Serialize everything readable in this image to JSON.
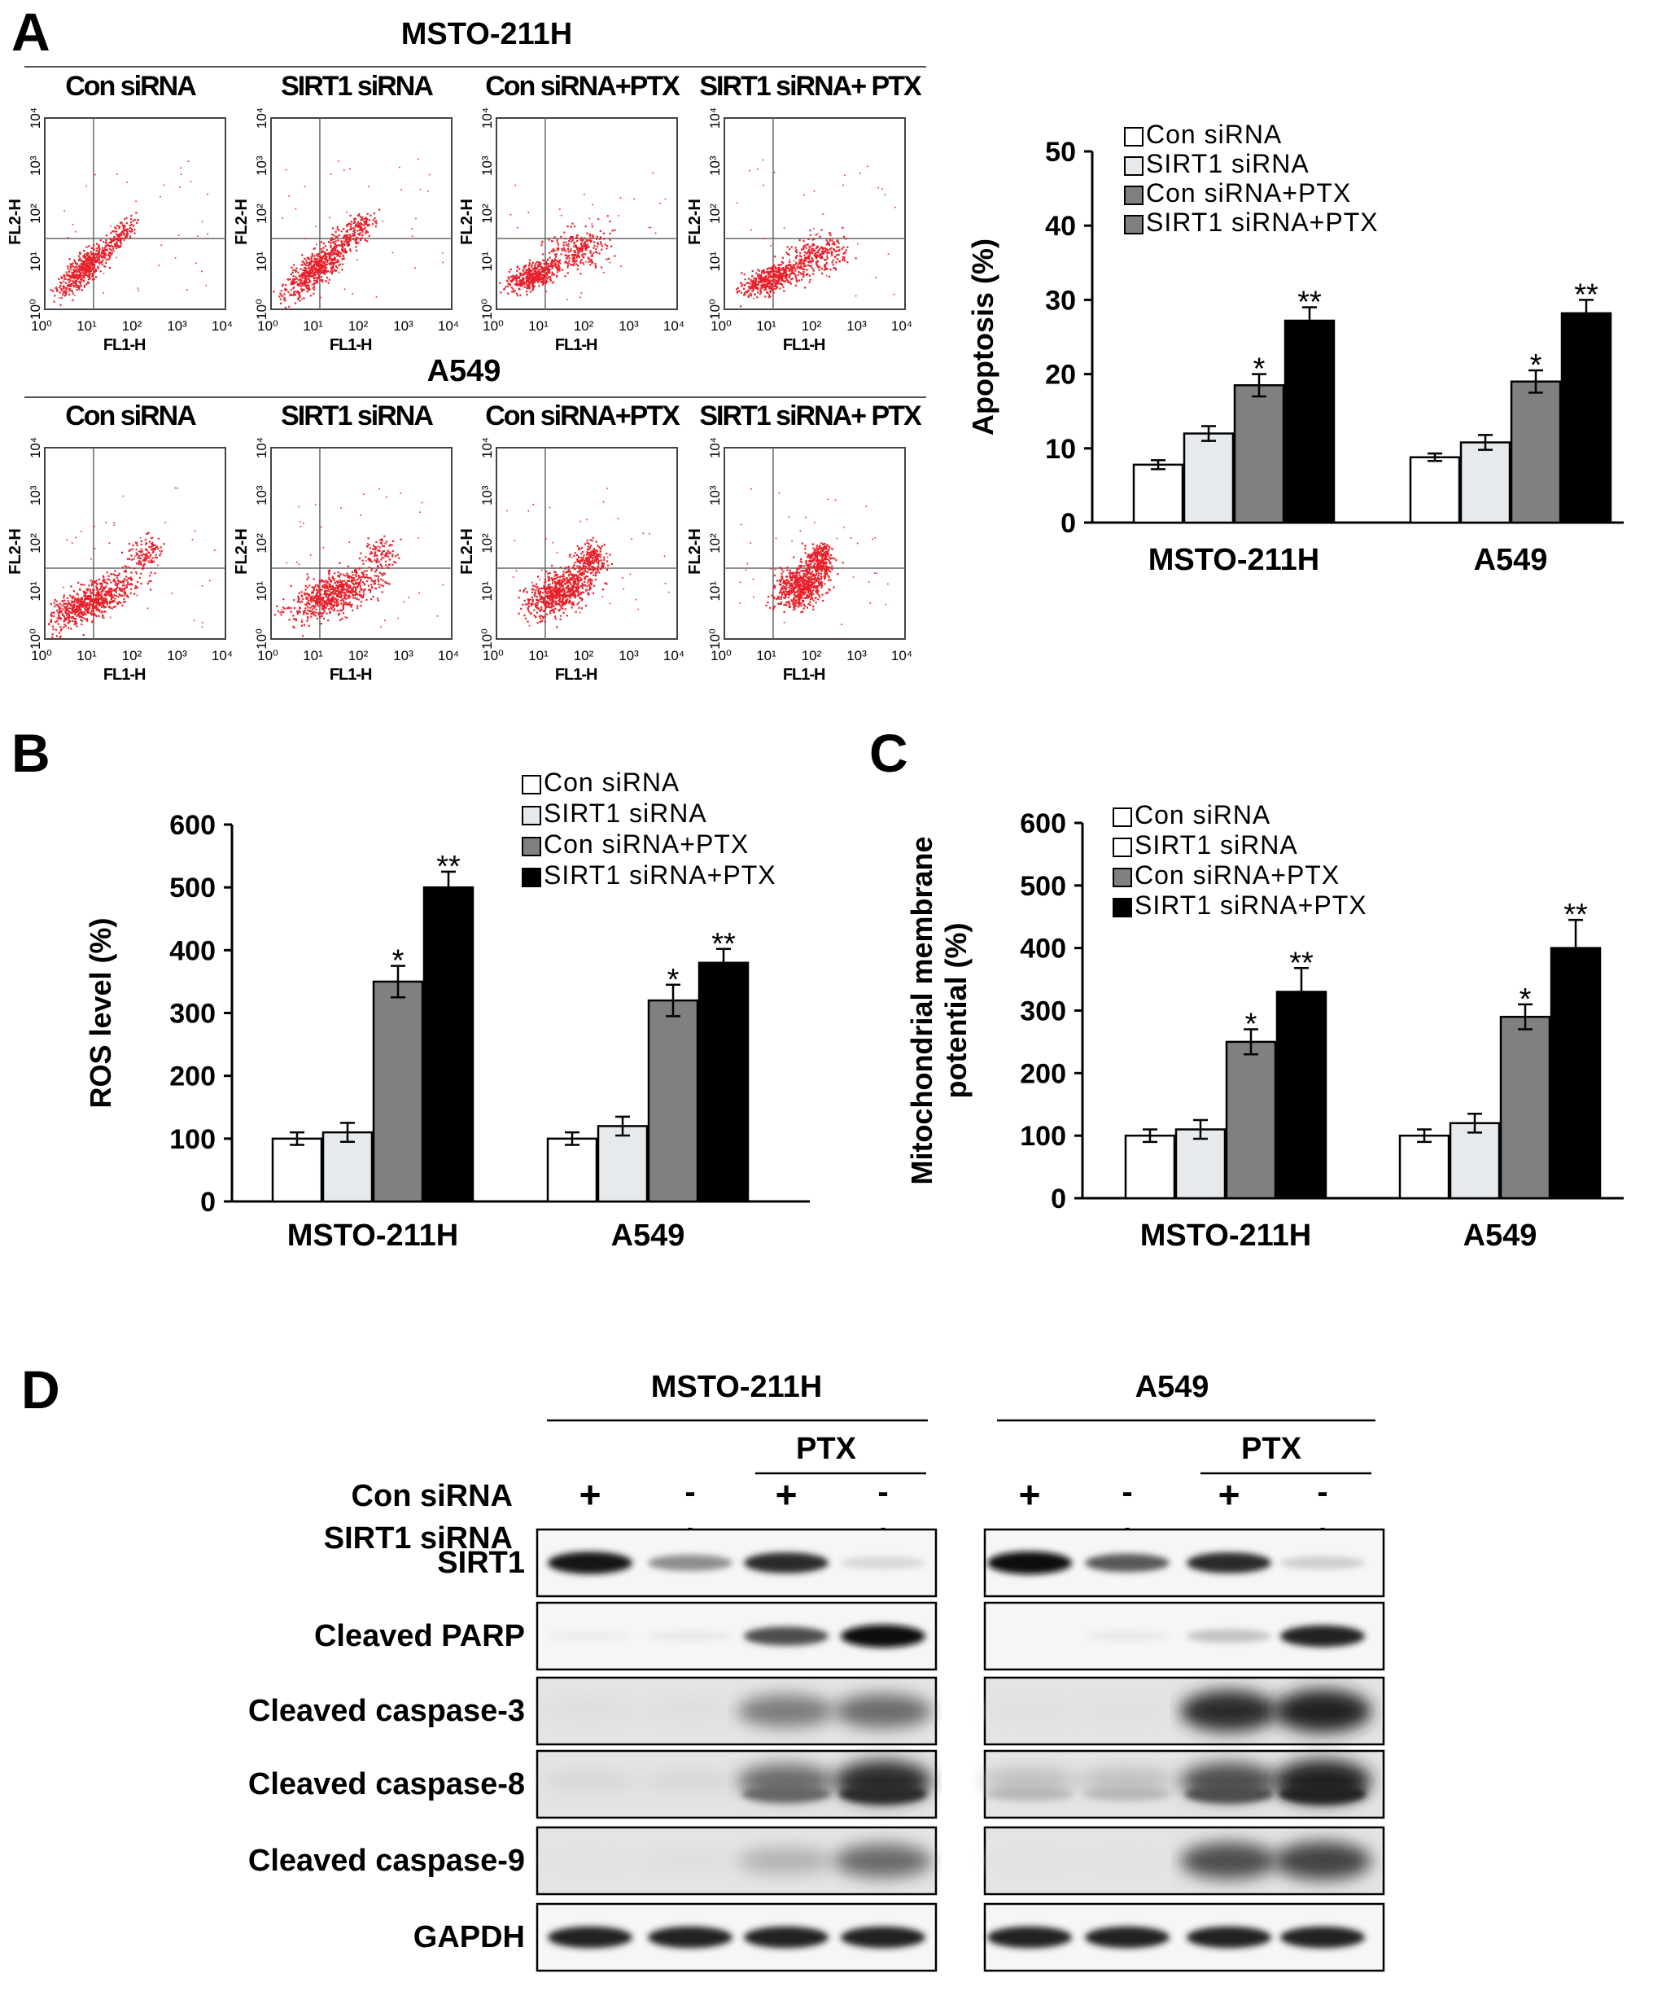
{
  "panel_a": {
    "letter": "A",
    "flow": {
      "rows": [
        {
          "cell_line": "MSTO-211H",
          "plots": [
            "Con siRNA",
            "SIRT1 siRNA",
            "Con siRNA+PTX",
            "SIRT1 siRNA+ PTX"
          ]
        },
        {
          "cell_line": "A549",
          "plots": [
            "Con siRNA",
            "SIRT1 siRNA",
            "Con siRNA+PTX",
            "SIRT1 siRNA+ PTX"
          ]
        }
      ],
      "y_axis_label": "FL2-H",
      "x_axis_label": "FL1-H",
      "tick_labels": [
        "10⁰",
        "10¹",
        "10²",
        "10³",
        "10⁴"
      ],
      "dot_color": "#e8202a"
    }
  },
  "panel_b": {
    "letter": "B"
  },
  "panel_c": {
    "letter": "C"
  },
  "panel_d": {
    "letter": "D",
    "groups": [
      {
        "cell_line": "MSTO-211H",
        "treatment": "PTX"
      },
      {
        "cell_line": "A549",
        "treatment": "PTX"
      }
    ],
    "conditions": [
      {
        "label": "Con siRNA",
        "signs": [
          "+",
          "-",
          "+",
          "-"
        ]
      },
      {
        "label": "SIRT1 siRNA",
        "signs": [
          "-",
          "+",
          "-",
          "+"
        ]
      }
    ],
    "proteins": [
      "SIRT1",
      "Cleaved PARP",
      "Cleaved caspase-3",
      "Cleaved caspase-8",
      "Cleaved caspase-9",
      "GAPDH"
    ],
    "band_intensity": {
      "MSTO-211H": [
        [
          0.95,
          0.5,
          0.85,
          0.2
        ],
        [
          0.05,
          0.08,
          0.7,
          1.0
        ],
        [
          0.1,
          0.1,
          0.55,
          0.6
        ],
        [
          0.15,
          0.15,
          0.6,
          0.85
        ],
        [
          0.05,
          0.1,
          0.35,
          0.6
        ],
        [
          0.9,
          0.9,
          0.9,
          0.9
        ]
      ],
      "A549": [
        [
          1.0,
          0.65,
          0.85,
          0.25
        ],
        [
          0.0,
          0.08,
          0.3,
          0.9
        ],
        [
          0.08,
          0.08,
          0.85,
          0.9
        ],
        [
          0.3,
          0.3,
          0.7,
          0.9
        ],
        [
          0.05,
          0.05,
          0.7,
          0.75
        ],
        [
          0.9,
          0.9,
          0.9,
          0.9
        ]
      ]
    }
  },
  "colors": {
    "white_bar": "#ffffff",
    "light_bar": "#e6eaec",
    "gray_bar": "#808080",
    "black_bar": "#000000"
  },
  "chart_data": [
    {
      "id": "A",
      "type": "bar",
      "categories": [
        "MSTO-211H",
        "A549"
      ],
      "ylabel": "Apoptosis (%)",
      "ylim": [
        0,
        50
      ],
      "yticks": [
        "0",
        "10",
        "20",
        "30",
        "40",
        "50"
      ],
      "legend_placement": "top-left",
      "series": [
        {
          "name": "Con siRNA",
          "values": [
            7.8,
            8.8
          ],
          "errors": [
            0.6,
            0.5
          ],
          "marks": [
            "",
            ""
          ]
        },
        {
          "name": "SIRT1 siRNA",
          "values": [
            12.0,
            10.8
          ],
          "errors": [
            1.0,
            1.0
          ],
          "marks": [
            "",
            ""
          ]
        },
        {
          "name": "Con siRNA+PTX",
          "values": [
            18.5,
            19.0
          ],
          "errors": [
            1.5,
            1.5
          ],
          "marks": [
            "*",
            "*"
          ]
        },
        {
          "name": "SIRT1 siRNA+PTX",
          "values": [
            27.2,
            28.2
          ],
          "errors": [
            1.8,
            1.8
          ],
          "marks": [
            "**",
            "**"
          ]
        }
      ]
    },
    {
      "id": "B",
      "type": "bar",
      "categories": [
        "MSTO-211H",
        "A549"
      ],
      "ylabel": "ROS level (%)",
      "ylim": [
        0,
        600
      ],
      "yticks": [
        "0",
        "100",
        "200",
        "300",
        "400",
        "500",
        "600"
      ],
      "legend_placement": "top-right",
      "series": [
        {
          "name": "Con siRNA",
          "values": [
            100,
            100
          ],
          "errors": [
            10,
            10
          ],
          "marks": [
            "",
            ""
          ]
        },
        {
          "name": "SIRT1 siRNA",
          "values": [
            110,
            120
          ],
          "errors": [
            15,
            15
          ],
          "marks": [
            "",
            ""
          ]
        },
        {
          "name": "Con siRNA+PTX",
          "values": [
            350,
            320
          ],
          "errors": [
            25,
            25
          ],
          "marks": [
            "*",
            "*"
          ]
        },
        {
          "name": "SIRT1 siRNA+PTX",
          "values": [
            500,
            380
          ],
          "errors": [
            25,
            22
          ],
          "marks": [
            "**",
            "**"
          ]
        }
      ]
    },
    {
      "id": "C",
      "type": "bar",
      "categories": [
        "MSTO-211H",
        "A549"
      ],
      "ylabel": [
        "Mitochondrial membrane",
        "potential (%)"
      ],
      "ylim": [
        0,
        600
      ],
      "yticks": [
        "0",
        "100",
        "200",
        "300",
        "400",
        "500",
        "600"
      ],
      "legend_placement": "top-left",
      "series": [
        {
          "name": "Con siRNA",
          "values": [
            100,
            100
          ],
          "errors": [
            10,
            10
          ],
          "marks": [
            "",
            ""
          ]
        },
        {
          "name": "SIRT1 siRNA",
          "values": [
            110,
            120
          ],
          "errors": [
            15,
            15
          ],
          "marks": [
            "",
            ""
          ]
        },
        {
          "name": "Con siRNA+PTX",
          "values": [
            250,
            290
          ],
          "errors": [
            20,
            20
          ],
          "marks": [
            "*",
            "*"
          ]
        },
        {
          "name": "SIRT1 siRNA+PTX",
          "values": [
            330,
            400
          ],
          "errors": [
            38,
            45
          ],
          "marks": [
            "**",
            "**"
          ]
        }
      ]
    }
  ]
}
